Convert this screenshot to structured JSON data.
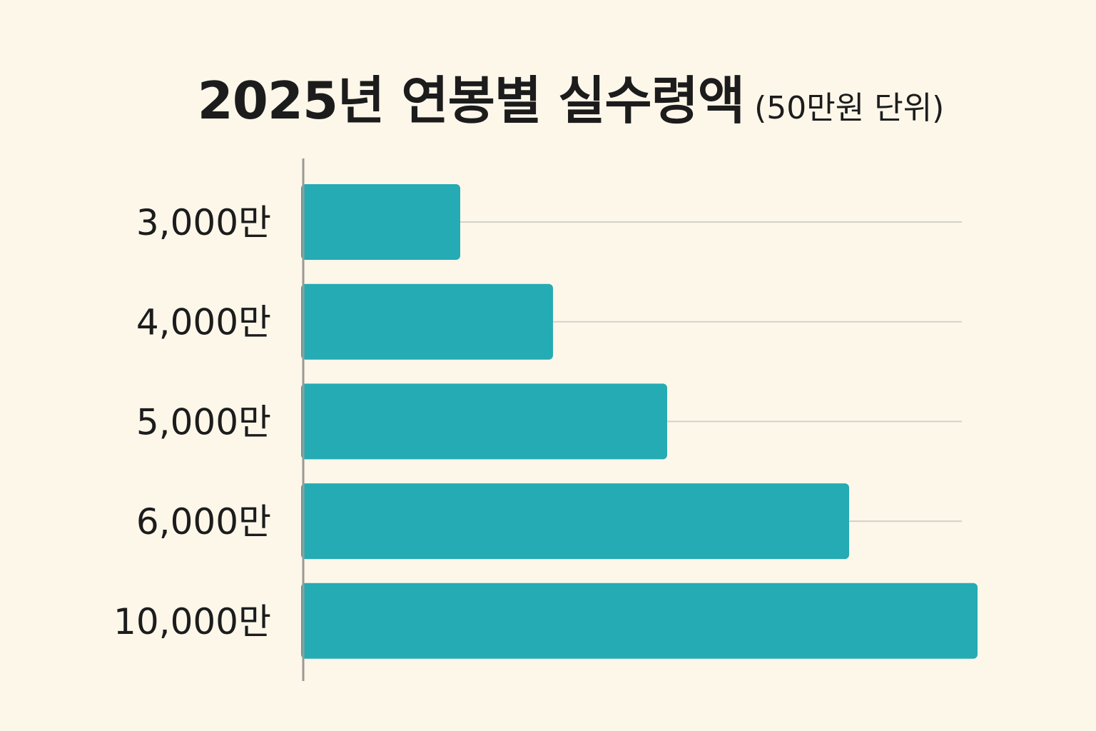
{
  "chart_data": {
    "type": "bar",
    "orientation": "horizontal",
    "title": "2025년 연봉별 실수령액",
    "subtitle": "(50만원 단위)",
    "categories": [
      "3,000만",
      "4,000만",
      "5,000만",
      "6,000만",
      "10,000만"
    ],
    "values": [
      220,
      350,
      510,
      765,
      945
    ],
    "xlim": [
      0,
      945
    ],
    "grid": true,
    "legend": "none",
    "colors": {
      "bar": "#25abb3",
      "grid": "#d2d2c6",
      "axis": "#9a9a94",
      "background": "#fdf7ea"
    }
  }
}
